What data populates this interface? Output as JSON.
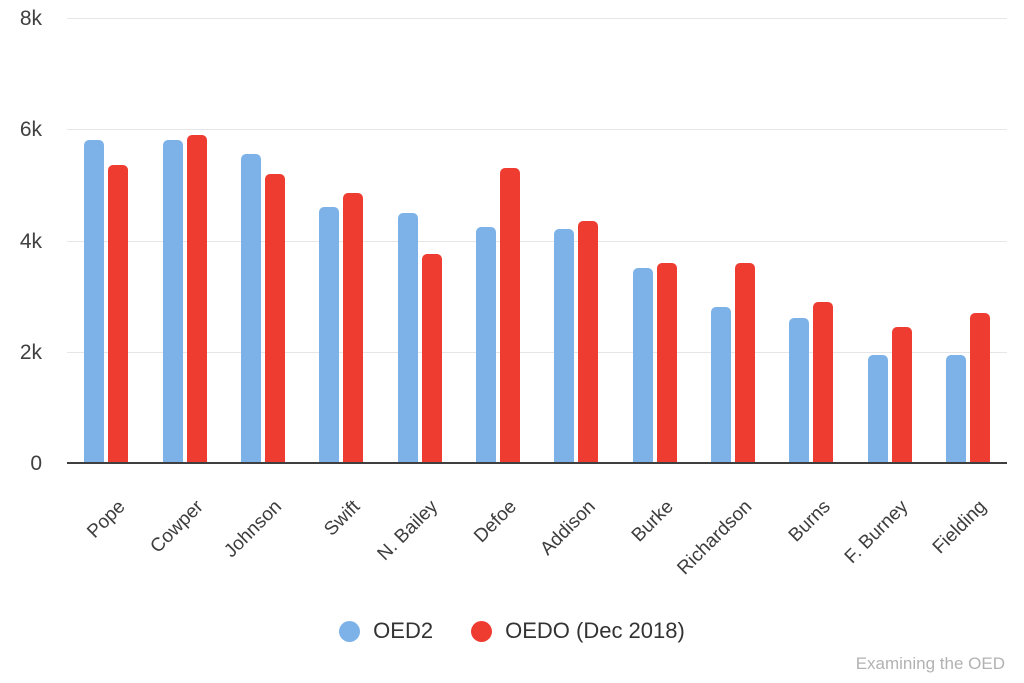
{
  "chart_data": {
    "type": "bar",
    "title": "",
    "xlabel": "",
    "ylabel": "",
    "categories": [
      "Pope",
      "Cowper",
      "Johnson",
      "Swift",
      "N. Bailey",
      "Defoe",
      "Addison",
      "Burke",
      "Richardson",
      "Burns",
      "F. Burney",
      "Fielding"
    ],
    "series": [
      {
        "name": "OED2",
        "color": "#7db2e9",
        "values": [
          5800,
          5800,
          5550,
          4600,
          4500,
          4250,
          4200,
          3500,
          2800,
          2600,
          1950,
          1950
        ]
      },
      {
        "name": "OEDO (Dec 2018)",
        "color": "#ef3c31",
        "values": [
          5350,
          5900,
          5200,
          4850,
          3750,
          5300,
          4350,
          3600,
          3600,
          2900,
          2450,
          2700
        ]
      }
    ],
    "y_ticks": [
      {
        "label": "8k",
        "value": 8000
      },
      {
        "label": "6k",
        "value": 6000
      },
      {
        "label": "4k",
        "value": 4000
      },
      {
        "label": "2k",
        "value": 2000
      },
      {
        "label": "0",
        "value": 0
      }
    ],
    "ylim": [
      0,
      8000
    ],
    "grid": true,
    "legend_position": "bottom"
  },
  "footer": {
    "credit": "Examining the OED"
  },
  "colors": {
    "axis_line": "#3f3f3f",
    "gridline": "#e6e6e6",
    "tick_text": "#404040",
    "credit_text": "#b2b2b2"
  }
}
